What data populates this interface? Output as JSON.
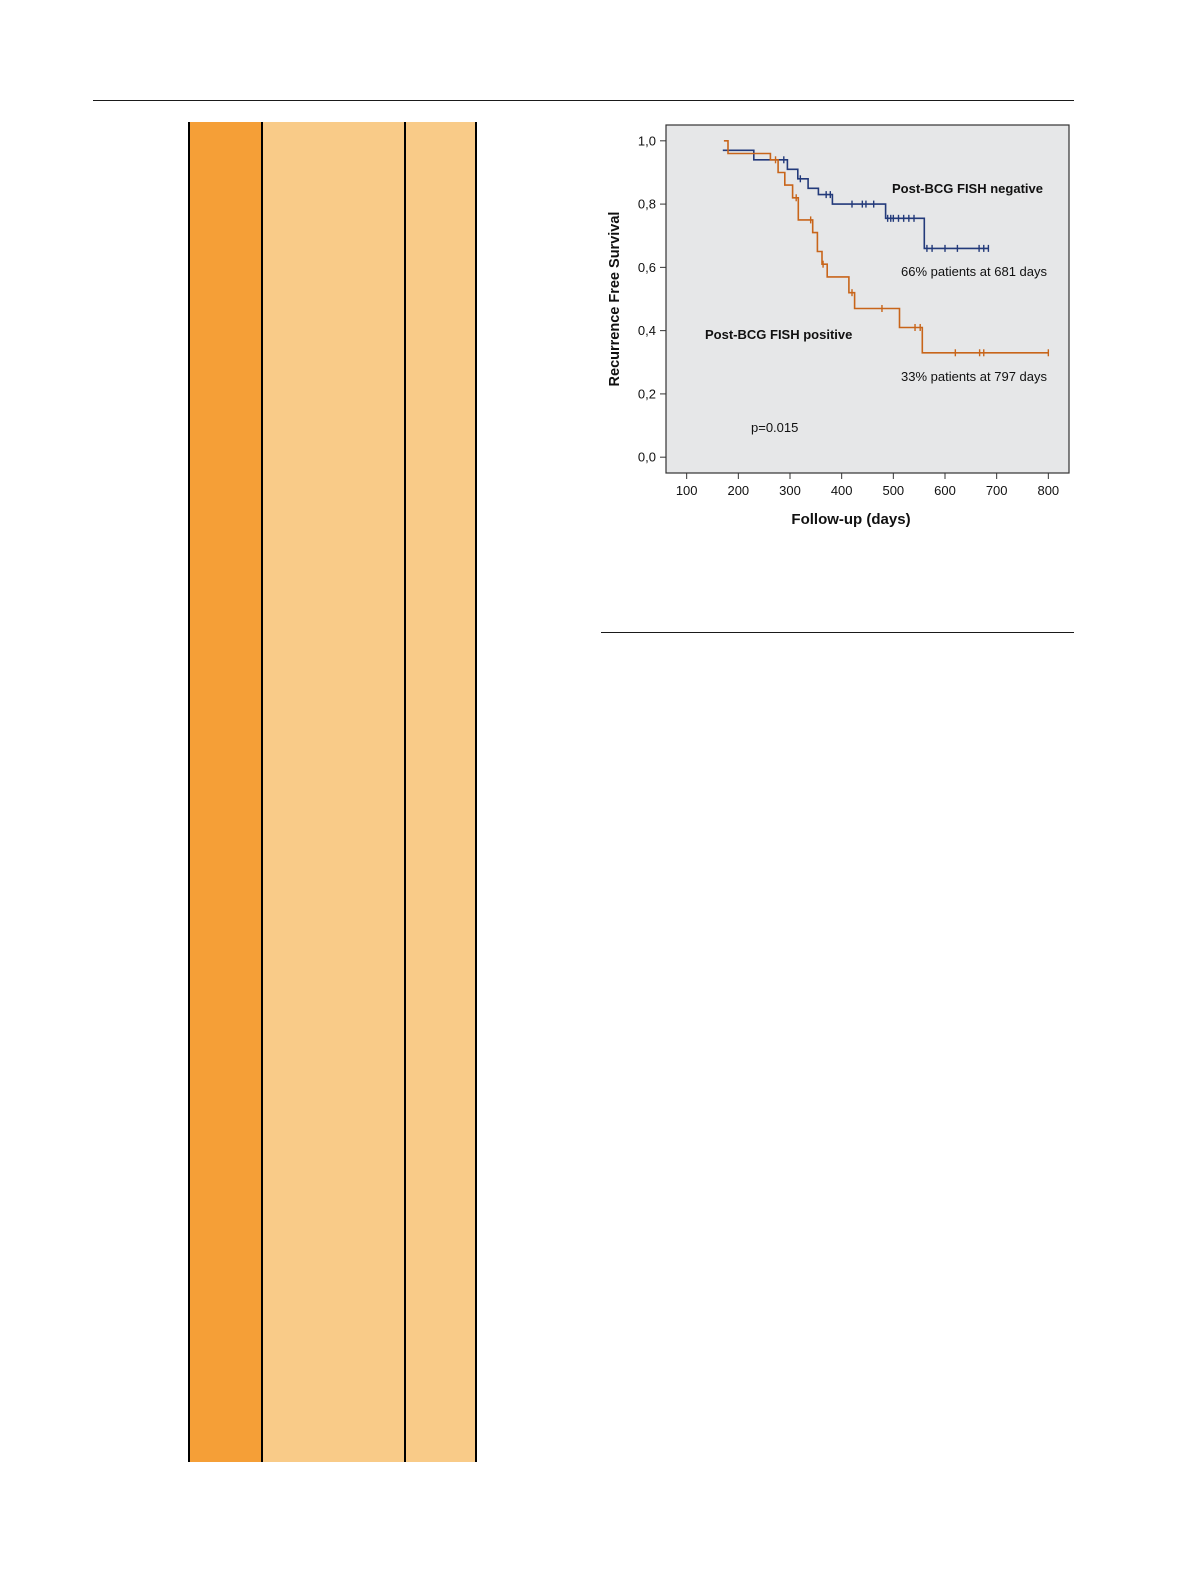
{
  "page": {
    "colors": {
      "dark_orange": "#f59f37",
      "light_orange": "#f9cb88",
      "rule": "#1a1a1a"
    }
  },
  "chart_data": {
    "type": "line",
    "subtype": "kaplan-meier step",
    "xlabel": "Follow-up (days)",
    "ylabel": "Recurrence Free Survival",
    "xlim": [
      60,
      840
    ],
    "ylim": [
      -0.05,
      1.05
    ],
    "xticks": [
      100,
      200,
      300,
      400,
      500,
      600,
      700,
      800
    ],
    "xtick_labels": [
      "100",
      "200",
      "300",
      "400",
      "500",
      "600",
      "700",
      "800"
    ],
    "yticks": [
      0.0,
      0.2,
      0.4,
      0.6,
      0.8,
      1.0
    ],
    "ytick_labels": [
      "0,0",
      "0,2",
      "0,4",
      "0,6",
      "0,8",
      "1,0"
    ],
    "plot_background": "#e6e7e8",
    "grid": false,
    "series": [
      {
        "name": "Post-BCG FISH negative",
        "color": "#233a7a",
        "steps": [
          [
            170,
            0.97
          ],
          [
            230,
            0.94
          ],
          [
            295,
            0.91
          ],
          [
            315,
            0.88
          ],
          [
            335,
            0.85
          ],
          [
            355,
            0.83
          ],
          [
            382,
            0.8
          ],
          [
            485,
            0.755
          ],
          [
            560,
            0.66
          ],
          [
            685,
            0.66
          ]
        ],
        "censored": [
          [
            288,
            0.94
          ],
          [
            320,
            0.88
          ],
          [
            370,
            0.83
          ],
          [
            378,
            0.83
          ],
          [
            420,
            0.8
          ],
          [
            440,
            0.8
          ],
          [
            447,
            0.8
          ],
          [
            462,
            0.8
          ],
          [
            489,
            0.755
          ],
          [
            495,
            0.755
          ],
          [
            500,
            0.755
          ],
          [
            510,
            0.755
          ],
          [
            520,
            0.755
          ],
          [
            530,
            0.755
          ],
          [
            540,
            0.755
          ],
          [
            565,
            0.66
          ],
          [
            575,
            0.66
          ],
          [
            600,
            0.66
          ],
          [
            624,
            0.66
          ],
          [
            666,
            0.66
          ],
          [
            675,
            0.66
          ],
          [
            684,
            0.66
          ]
        ]
      },
      {
        "name": "Post-BCG FISH positive",
        "color": "#c8651a",
        "steps": [
          [
            172,
            1.0
          ],
          [
            180,
            0.96
          ],
          [
            262,
            0.94
          ],
          [
            277,
            0.9
          ],
          [
            290,
            0.86
          ],
          [
            305,
            0.82
          ],
          [
            316,
            0.75
          ],
          [
            344,
            0.71
          ],
          [
            353,
            0.65
          ],
          [
            362,
            0.61
          ],
          [
            372,
            0.57
          ],
          [
            414,
            0.52
          ],
          [
            425,
            0.47
          ],
          [
            512,
            0.41
          ],
          [
            556,
            0.33
          ],
          [
            800,
            0.33
          ]
        ],
        "censored": [
          [
            272,
            0.94
          ],
          [
            312,
            0.82
          ],
          [
            340,
            0.75
          ],
          [
            364,
            0.61
          ],
          [
            420,
            0.52
          ],
          [
            478,
            0.47
          ],
          [
            542,
            0.41
          ],
          [
            552,
            0.41
          ],
          [
            620,
            0.33
          ],
          [
            667,
            0.33
          ],
          [
            675,
            0.33
          ],
          [
            800,
            0.33
          ]
        ]
      }
    ],
    "annotations": [
      {
        "text": "Post-BCG FISH negative",
        "bold": true
      },
      {
        "text": "66% patients at 681 days",
        "bold": false
      },
      {
        "text": "Post-BCG FISH positive",
        "bold": true
      },
      {
        "text": "33% patients at 797 days",
        "bold": false
      },
      {
        "text": "p=0.015",
        "bold": false
      }
    ]
  }
}
